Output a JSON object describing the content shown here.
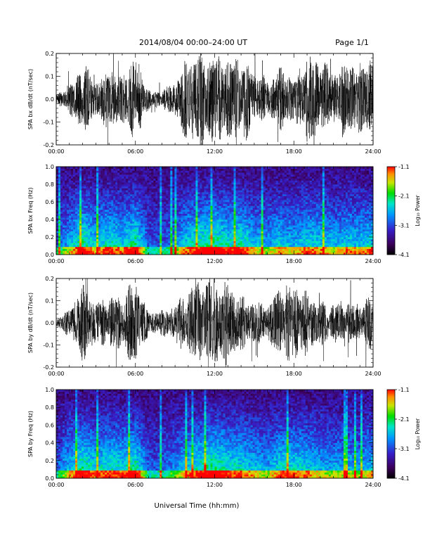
{
  "header": {
    "title": "2014/08/04   00:00–24:00 UT",
    "page": "Page 1/1"
  },
  "x_axis_label": "Universal Time (hh:mm)",
  "chart_data": [
    {
      "type": "line",
      "ylabel": "SPA bx dB/dt (nT/sec)",
      "xlim": [
        0,
        24
      ],
      "ylim": [
        -0.2,
        0.2
      ],
      "x_ticks": [
        "00:00",
        "06:00",
        "12:00",
        "18:00",
        "24:00"
      ],
      "y_ticks": [
        "-0.2",
        "-0.1",
        "0.0",
        "0.1",
        "0.2"
      ],
      "series": [
        {
          "name": "",
          "color": "#000000",
          "hours": [
            0,
            1,
            2,
            3,
            4,
            5,
            6,
            7,
            8,
            9,
            10,
            11,
            12,
            13,
            14,
            15,
            16,
            17,
            18,
            19,
            20,
            21,
            22,
            23,
            24
          ],
          "envelope_nT_per_sec": [
            0.02,
            0.06,
            0.16,
            0.08,
            0.14,
            0.1,
            0.2,
            0.05,
            0.04,
            0.08,
            0.2,
            0.2,
            0.2,
            0.18,
            0.2,
            0.12,
            0.09,
            0.14,
            0.1,
            0.2,
            0.18,
            0.12,
            0.17,
            0.15,
            0.2
          ]
        }
      ]
    },
    {
      "type": "heatmap",
      "ylabel": "SPA bx Freq (Hz)",
      "xlim": [
        0,
        24
      ],
      "ylim": [
        0.0,
        1.0
      ],
      "x_ticks": [
        "00:00",
        "06:00",
        "12:00",
        "18:00",
        "24:00"
      ],
      "y_ticks": [
        "0.0",
        "0.2",
        "0.4",
        "0.6",
        "0.8",
        "1.0"
      ],
      "colorbar": {
        "label": "Log₁₀ Power",
        "range": [
          -4.1,
          -1.1
        ],
        "ticks": [
          "-1.1",
          "-2.1",
          "-3.1",
          "-4.1"
        ]
      },
      "activity": [
        0.35,
        0.6,
        0.9,
        0.65,
        0.8,
        0.7,
        0.9,
        0.35,
        0.3,
        0.5,
        0.75,
        0.85,
        0.9,
        0.8,
        0.85,
        0.65,
        0.55,
        0.7,
        0.6,
        0.75,
        0.7,
        0.6,
        0.7,
        0.65,
        0.75
      ]
    },
    {
      "type": "line",
      "ylabel": "SPA by dB/dt (nT/sec)",
      "xlim": [
        0,
        24
      ],
      "ylim": [
        -0.2,
        0.2
      ],
      "x_ticks": [
        "00:00",
        "06:00",
        "12:00",
        "18:00",
        "24:00"
      ],
      "y_ticks": [
        "-0.2",
        "-0.1",
        "0.0",
        "0.1",
        "0.2"
      ],
      "series": [
        {
          "name": "",
          "color": "#000000",
          "hours": [
            0,
            1,
            2,
            3,
            4,
            5,
            6,
            7,
            8,
            9,
            10,
            11,
            12,
            13,
            14,
            15,
            16,
            17,
            18,
            19,
            20,
            21,
            22,
            23,
            24
          ],
          "envelope_nT_per_sec": [
            0.02,
            0.06,
            0.18,
            0.1,
            0.12,
            0.12,
            0.2,
            0.05,
            0.06,
            0.08,
            0.15,
            0.2,
            0.2,
            0.19,
            0.13,
            0.1,
            0.08,
            0.17,
            0.18,
            0.14,
            0.1,
            0.09,
            0.1,
            0.08,
            0.15
          ]
        }
      ]
    },
    {
      "type": "heatmap",
      "ylabel": "SPA by Freq (Hz)",
      "xlim": [
        0,
        24
      ],
      "ylim": [
        0.0,
        1.0
      ],
      "x_ticks": [
        "00:00",
        "06:00",
        "12:00",
        "18:00",
        "24:00"
      ],
      "y_ticks": [
        "0.0",
        "0.2",
        "0.4",
        "0.6",
        "0.8",
        "1.0"
      ],
      "colorbar": {
        "label": "Log₁₀ Power",
        "range": [
          -4.1,
          -1.1
        ],
        "ticks": [
          "-1.1",
          "-2.1",
          "-3.1",
          "-4.1"
        ]
      },
      "activity": [
        0.35,
        0.65,
        0.9,
        0.7,
        0.8,
        0.75,
        0.9,
        0.35,
        0.35,
        0.5,
        0.7,
        0.85,
        0.9,
        0.8,
        0.75,
        0.65,
        0.55,
        0.75,
        0.75,
        0.7,
        0.6,
        0.55,
        0.6,
        0.55,
        0.7
      ]
    }
  ]
}
